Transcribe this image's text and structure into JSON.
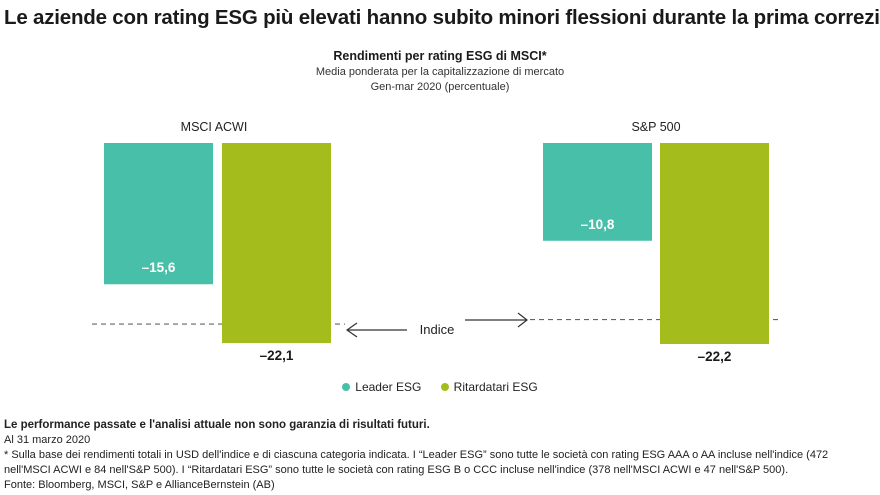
{
  "header": {
    "title": "Le aziende con rating ESG più elevati hanno subito minori flessioni durante la prima correzi-"
  },
  "colors": {
    "leader": "#48bfa9",
    "laggard": "#a4bd1c"
  },
  "chart_data": {
    "type": "bar",
    "title": "Rendimenti per rating ESG di MSCI*",
    "subtitle_line1": "Media ponderata per la capitalizzazione di mercato",
    "subtitle_line2": "Gen-mar 2020 (percentuale)",
    "groups": [
      "MSCI ACWI",
      "S&P 500"
    ],
    "series": [
      {
        "name": "Leader ESG",
        "values": [
          -15.6,
          -10.8
        ],
        "labels": [
          "–15,6",
          "–10,8"
        ]
      },
      {
        "name": "Ritardatari ESG",
        "values": [
          -22.1,
          -22.2
        ],
        "labels": [
          "–22,1",
          "–22,2"
        ]
      }
    ],
    "index_label": "Indice",
    "index_values": [
      -20.0,
      -19.5
    ],
    "ylim": [
      -22.2,
      0
    ],
    "legend_position": "bottom"
  },
  "footer": {
    "disclaimer": "Le performance passate e l'analisi attuale non sono garanzia di risultati futuri.",
    "date": "Al 31 marzo 2020",
    "note": "* Sulla base dei rendimenti totali in USD dell'indice e di ciascuna categoria indicata. I “Leader ESG” sono tutte le società con rating ESG AAA o AA incluse nell'indice (472 nell'MSCI ACWI e 84 nell'S&P 500). I “Ritardatari ESG” sono tutte le società con rating ESG B o CCC incluse nell'indice (378 nell'MSCI ACWI e 47 nell'S&P 500).",
    "source": "Fonte: Bloomberg, MSCI, S&P e AllianceBernstein (AB)"
  }
}
